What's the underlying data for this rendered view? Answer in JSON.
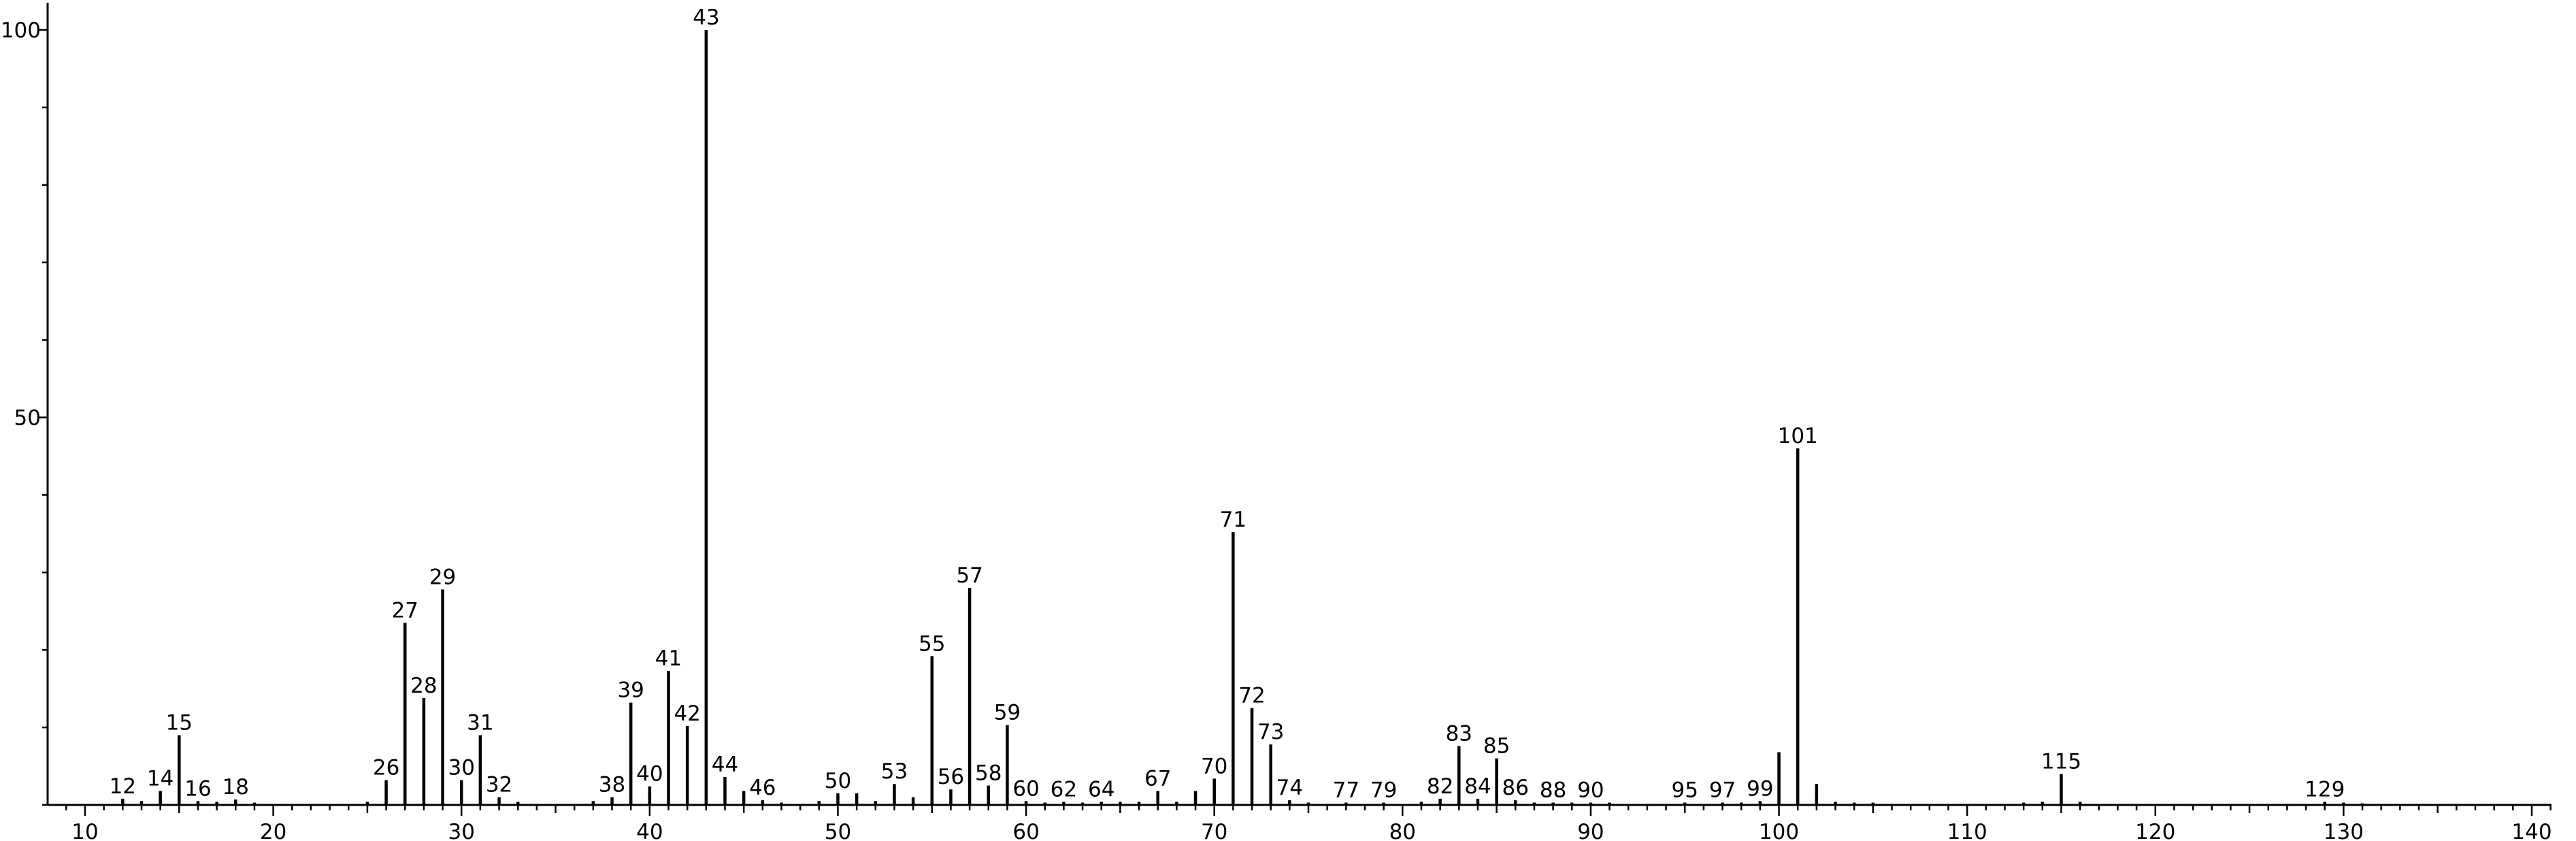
{
  "chart_data": {
    "type": "bar",
    "xlim": [
      8,
      141
    ],
    "ylim": [
      0,
      103
    ],
    "x_ticks": [
      10,
      20,
      30,
      40,
      50,
      60,
      70,
      80,
      90,
      100,
      110,
      120,
      130,
      140
    ],
    "y_ticks": [
      50,
      100
    ],
    "tick_labels_x": [
      "10",
      "20",
      "30",
      "40",
      "50",
      "60",
      "70",
      "80",
      "90",
      "100",
      "110",
      "120",
      "130",
      "140"
    ],
    "tick_labels_y": [
      "50",
      "100"
    ],
    "grid": false,
    "peaks": [
      {
        "mz": 12,
        "intensity": 0.8,
        "label": "12"
      },
      {
        "mz": 13,
        "intensity": 0.5,
        "label": ""
      },
      {
        "mz": 14,
        "intensity": 1.8,
        "label": "14"
      },
      {
        "mz": 15,
        "intensity": 9.0,
        "label": "15"
      },
      {
        "mz": 16,
        "intensity": 0.5,
        "label": "16"
      },
      {
        "mz": 17,
        "intensity": 0.4,
        "label": ""
      },
      {
        "mz": 18,
        "intensity": 0.7,
        "label": "18"
      },
      {
        "mz": 19,
        "intensity": 0.3,
        "label": ""
      },
      {
        "mz": 25,
        "intensity": 0.4,
        "label": ""
      },
      {
        "mz": 26,
        "intensity": 3.2,
        "label": "26"
      },
      {
        "mz": 27,
        "intensity": 23.5,
        "label": "27"
      },
      {
        "mz": 28,
        "intensity": 13.8,
        "label": "28"
      },
      {
        "mz": 29,
        "intensity": 27.8,
        "label": "29"
      },
      {
        "mz": 30,
        "intensity": 3.2,
        "label": "30"
      },
      {
        "mz": 31,
        "intensity": 9.0,
        "label": "31"
      },
      {
        "mz": 32,
        "intensity": 1.0,
        "label": "32"
      },
      {
        "mz": 33,
        "intensity": 0.4,
        "label": ""
      },
      {
        "mz": 37,
        "intensity": 0.5,
        "label": ""
      },
      {
        "mz": 38,
        "intensity": 1.0,
        "label": "38"
      },
      {
        "mz": 39,
        "intensity": 13.2,
        "label": "39"
      },
      {
        "mz": 40,
        "intensity": 2.4,
        "label": "40"
      },
      {
        "mz": 41,
        "intensity": 17.3,
        "label": "41"
      },
      {
        "mz": 42,
        "intensity": 10.2,
        "label": "42"
      },
      {
        "mz": 43,
        "intensity": 100.0,
        "label": "43"
      },
      {
        "mz": 44,
        "intensity": 3.6,
        "label": "44"
      },
      {
        "mz": 45,
        "intensity": 1.8,
        "label": ""
      },
      {
        "mz": 46,
        "intensity": 0.6,
        "label": "46"
      },
      {
        "mz": 47,
        "intensity": 0.3,
        "label": ""
      },
      {
        "mz": 49,
        "intensity": 0.5,
        "label": ""
      },
      {
        "mz": 50,
        "intensity": 1.5,
        "label": "50"
      },
      {
        "mz": 51,
        "intensity": 1.5,
        "label": ""
      },
      {
        "mz": 52,
        "intensity": 0.5,
        "label": ""
      },
      {
        "mz": 53,
        "intensity": 2.7,
        "label": "53"
      },
      {
        "mz": 54,
        "intensity": 1.0,
        "label": ""
      },
      {
        "mz": 55,
        "intensity": 19.2,
        "label": "55"
      },
      {
        "mz": 56,
        "intensity": 2.0,
        "label": "56"
      },
      {
        "mz": 57,
        "intensity": 28.0,
        "label": "57"
      },
      {
        "mz": 58,
        "intensity": 2.5,
        "label": "58"
      },
      {
        "mz": 59,
        "intensity": 10.3,
        "label": "59"
      },
      {
        "mz": 60,
        "intensity": 0.5,
        "label": "60"
      },
      {
        "mz": 61,
        "intensity": 0.3,
        "label": ""
      },
      {
        "mz": 62,
        "intensity": 0.4,
        "label": "62"
      },
      {
        "mz": 63,
        "intensity": 0.3,
        "label": ""
      },
      {
        "mz": 64,
        "intensity": 0.4,
        "label": "64"
      },
      {
        "mz": 65,
        "intensity": 0.4,
        "label": ""
      },
      {
        "mz": 66,
        "intensity": 0.4,
        "label": ""
      },
      {
        "mz": 67,
        "intensity": 1.8,
        "label": "67"
      },
      {
        "mz": 68,
        "intensity": 0.4,
        "label": ""
      },
      {
        "mz": 69,
        "intensity": 1.8,
        "label": ""
      },
      {
        "mz": 70,
        "intensity": 3.4,
        "label": "70"
      },
      {
        "mz": 71,
        "intensity": 35.2,
        "label": "71"
      },
      {
        "mz": 72,
        "intensity": 12.5,
        "label": "72"
      },
      {
        "mz": 73,
        "intensity": 7.8,
        "label": "73"
      },
      {
        "mz": 74,
        "intensity": 0.6,
        "label": "74"
      },
      {
        "mz": 75,
        "intensity": 0.3,
        "label": ""
      },
      {
        "mz": 77,
        "intensity": 0.3,
        "label": "77"
      },
      {
        "mz": 79,
        "intensity": 0.3,
        "label": "79"
      },
      {
        "mz": 81,
        "intensity": 0.4,
        "label": ""
      },
      {
        "mz": 82,
        "intensity": 0.8,
        "label": "82"
      },
      {
        "mz": 83,
        "intensity": 7.6,
        "label": "83"
      },
      {
        "mz": 84,
        "intensity": 0.8,
        "label": "84"
      },
      {
        "mz": 85,
        "intensity": 6.0,
        "label": "85"
      },
      {
        "mz": 86,
        "intensity": 0.6,
        "label": "86"
      },
      {
        "mz": 87,
        "intensity": 0.3,
        "label": ""
      },
      {
        "mz": 88,
        "intensity": 0.3,
        "label": "88"
      },
      {
        "mz": 89,
        "intensity": 0.3,
        "label": ""
      },
      {
        "mz": 90,
        "intensity": 0.3,
        "label": "90"
      },
      {
        "mz": 91,
        "intensity": 0.3,
        "label": ""
      },
      {
        "mz": 95,
        "intensity": 0.3,
        "label": "95"
      },
      {
        "mz": 97,
        "intensity": 0.3,
        "label": "97"
      },
      {
        "mz": 98,
        "intensity": 0.3,
        "label": ""
      },
      {
        "mz": 99,
        "intensity": 0.5,
        "label": "99"
      },
      {
        "mz": 100,
        "intensity": 6.8,
        "label": ""
      },
      {
        "mz": 101,
        "intensity": 46.0,
        "label": "101"
      },
      {
        "mz": 102,
        "intensity": 2.7,
        "label": ""
      },
      {
        "mz": 103,
        "intensity": 0.4,
        "label": ""
      },
      {
        "mz": 104,
        "intensity": 0.3,
        "label": ""
      },
      {
        "mz": 105,
        "intensity": 0.3,
        "label": ""
      },
      {
        "mz": 113,
        "intensity": 0.3,
        "label": ""
      },
      {
        "mz": 114,
        "intensity": 0.4,
        "label": ""
      },
      {
        "mz": 115,
        "intensity": 4.0,
        "label": "115"
      },
      {
        "mz": 116,
        "intensity": 0.4,
        "label": ""
      },
      {
        "mz": 129,
        "intensity": 0.4,
        "label": "129"
      },
      {
        "mz": 130,
        "intensity": 0.3,
        "label": ""
      },
      {
        "mz": 131,
        "intensity": 0.2,
        "label": ""
      }
    ]
  }
}
